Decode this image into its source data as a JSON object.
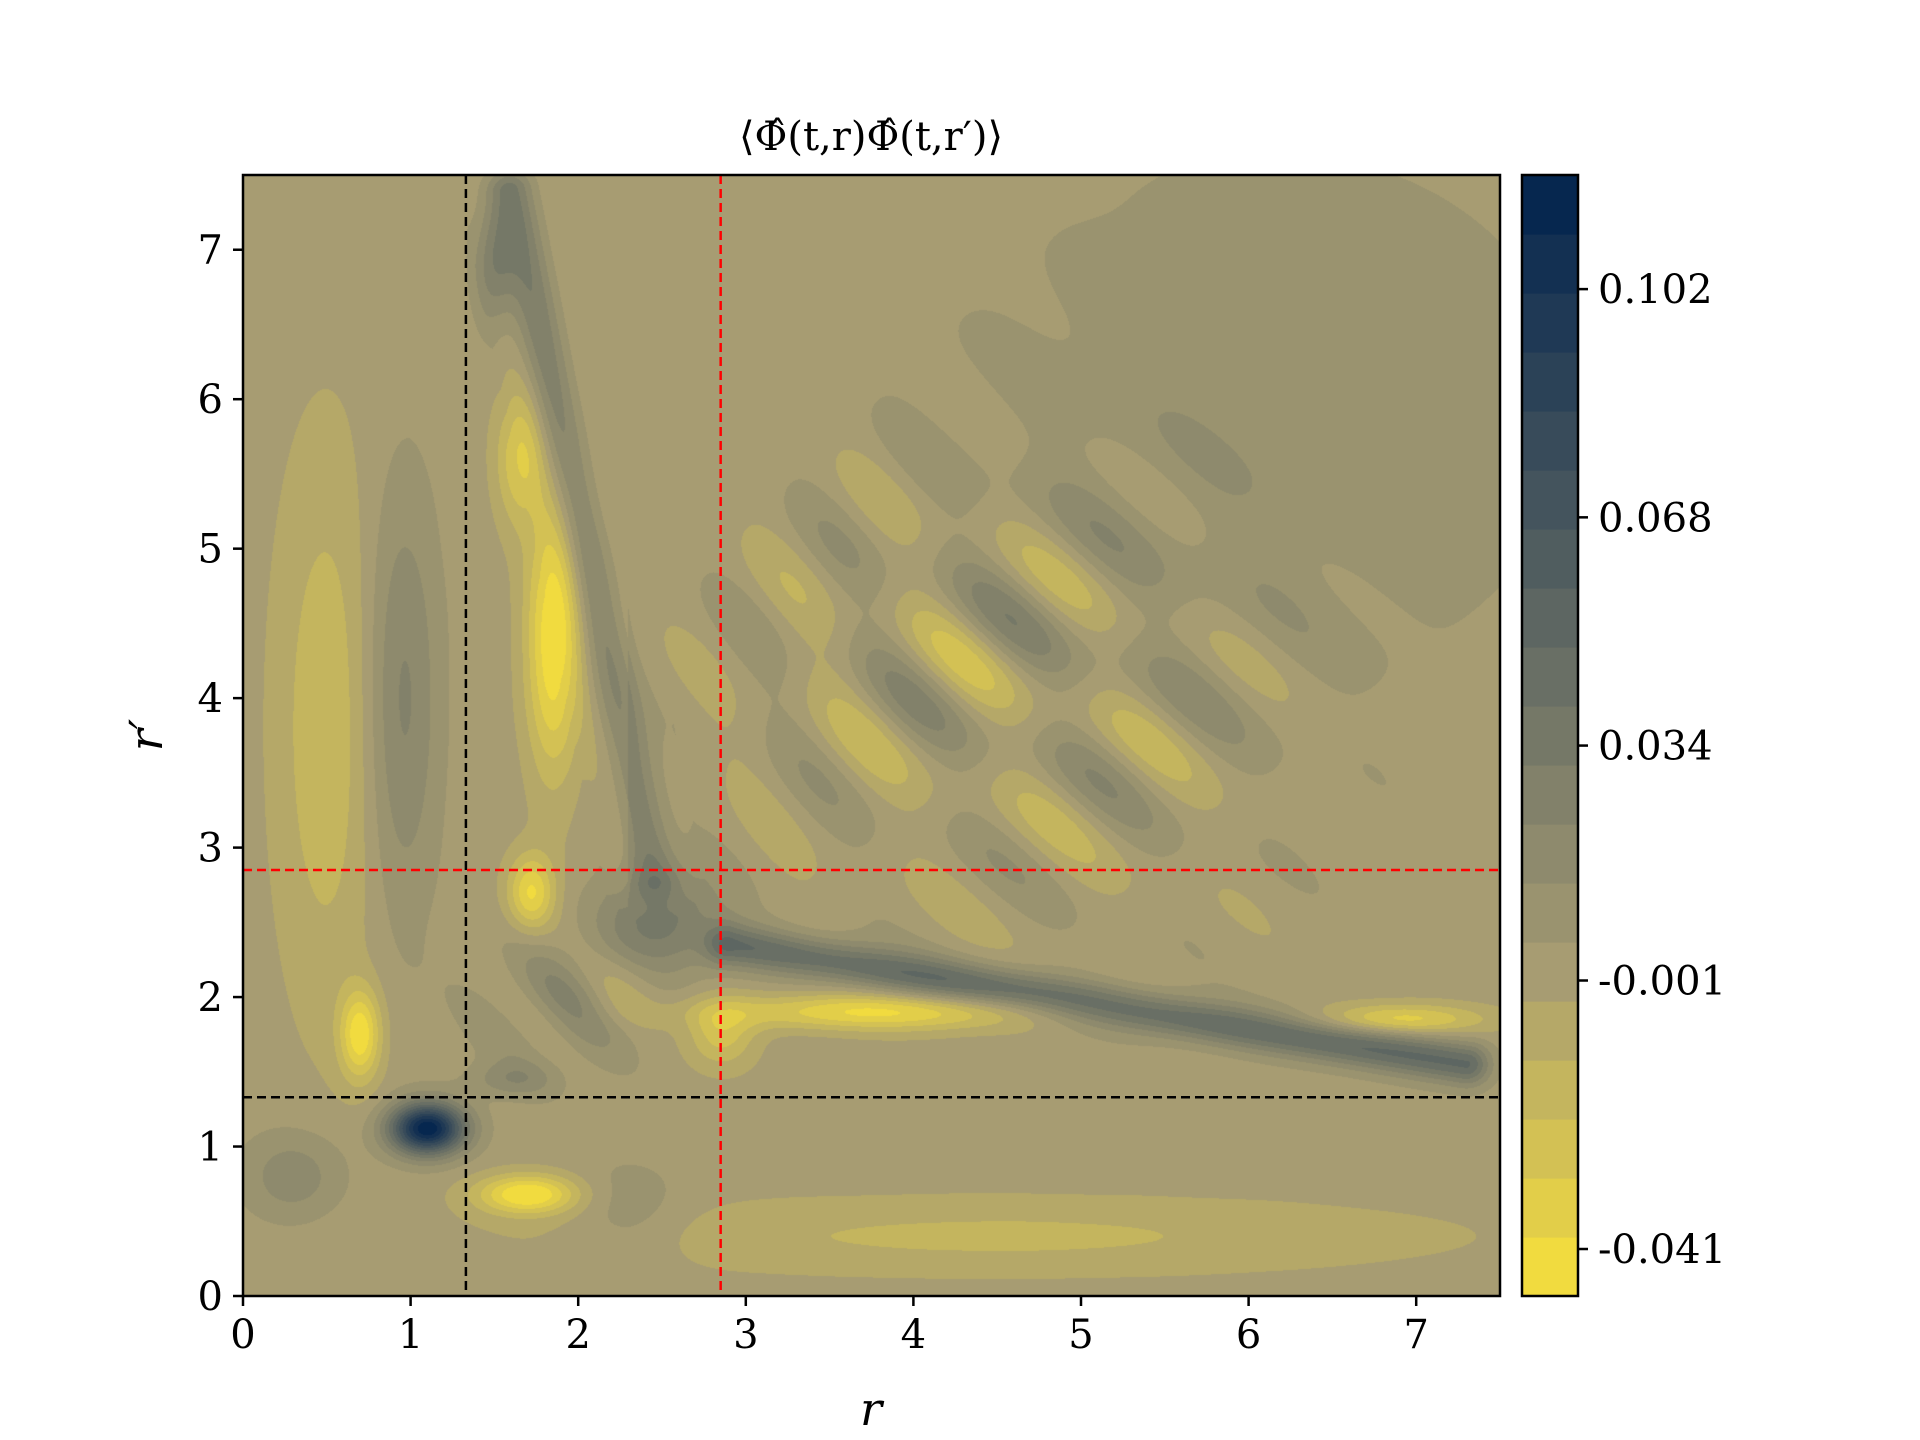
{
  "chart_data": {
    "type": "heatmap",
    "title": "⟨Φ̂(t,r)Φ̂(t,r′)⟩",
    "xlabel": "r",
    "ylabel": "r′",
    "xlim": [
      0,
      7.5
    ],
    "ylim": [
      0,
      7.5
    ],
    "x_ticks": [
      "0",
      "1",
      "2",
      "3",
      "4",
      "5",
      "6",
      "7"
    ],
    "y_ticks": [
      "0",
      "1",
      "2",
      "3",
      "4",
      "5",
      "6",
      "7"
    ],
    "colorbar": {
      "ticks": [
        {
          "value": 0.102,
          "label": "0.102"
        },
        {
          "value": 0.068,
          "label": "0.068"
        },
        {
          "value": 0.034,
          "label": "0.034"
        },
        {
          "value": -0.001,
          "label": "-0.001"
        },
        {
          "value": -0.041,
          "label": "-0.041"
        }
      ],
      "range": [
        -0.048,
        0.119
      ],
      "levels": 19,
      "colormap": "cividis-reversed",
      "color_low": "#f8e13a",
      "color_mid": "#a79c72",
      "color_high": "#00224e"
    },
    "reference_lines": [
      {
        "orientation": "vertical",
        "x": 1.33,
        "color": "#000000",
        "style": "dashed"
      },
      {
        "orientation": "horizontal",
        "y": 1.33,
        "color": "#000000",
        "style": "dashed"
      },
      {
        "orientation": "vertical",
        "x": 2.85,
        "color": "#ff0000",
        "style": "dashed"
      },
      {
        "orientation": "horizontal",
        "y": 2.85,
        "color": "#ff0000",
        "style": "dashed"
      }
    ],
    "features": [
      {
        "label": "peak",
        "x": 1.1,
        "y": 1.12,
        "value": 0.119
      },
      {
        "label": "ridge-vertical",
        "from": [
          2.5,
          2.8
        ],
        "to": [
          1.6,
          7.3
        ],
        "value": 0.05
      },
      {
        "label": "ridge-horizontal",
        "from": [
          2.9,
          2.35
        ],
        "to": [
          7.2,
          1.6
        ],
        "value": 0.05
      },
      {
        "label": "trough",
        "x": 1.7,
        "y": 0.7,
        "value": -0.045
      },
      {
        "label": "trough",
        "x": 0.7,
        "y": 1.8,
        "value": -0.045
      },
      {
        "label": "trough",
        "x": 1.85,
        "y": 4.4,
        "value": -0.045
      },
      {
        "label": "trough",
        "x": 3.8,
        "y": 1.85,
        "value": -0.04
      }
    ]
  }
}
